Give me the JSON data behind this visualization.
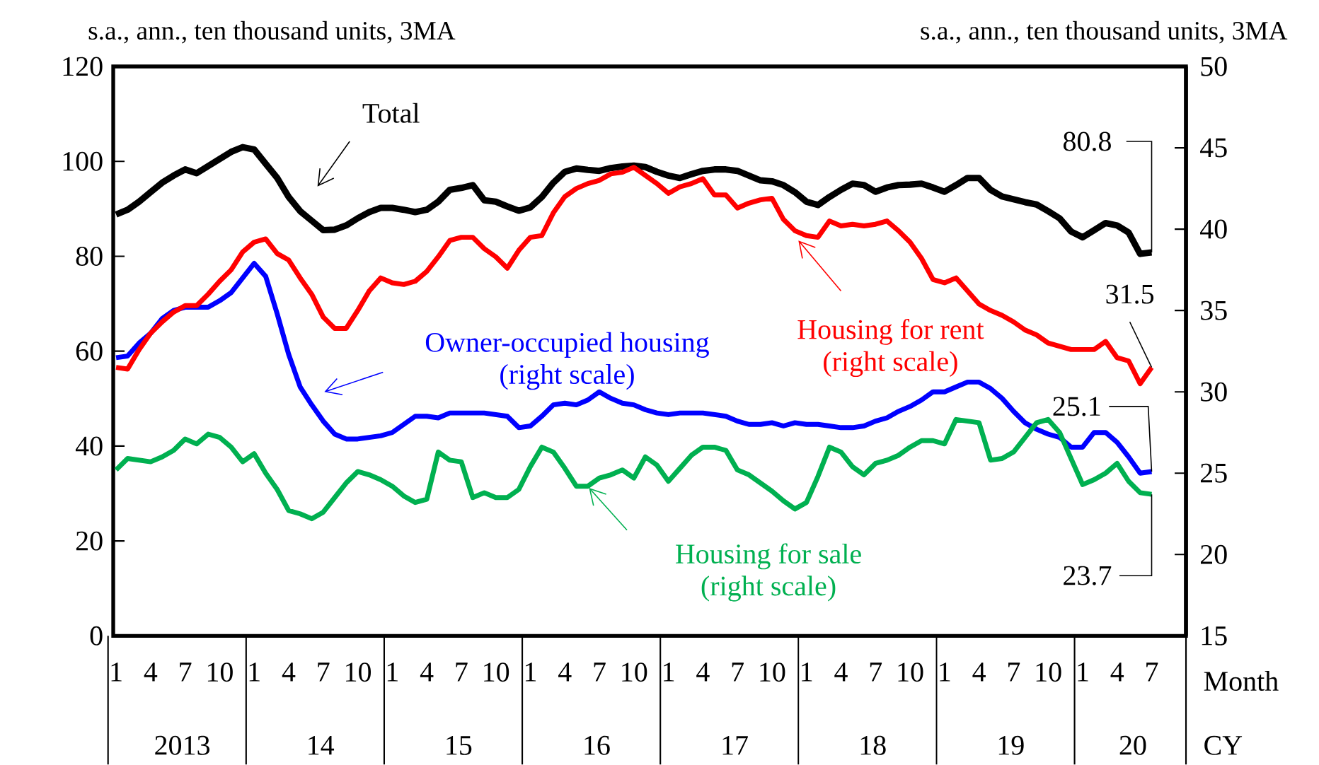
{
  "chart_data": {
    "type": "line",
    "ylabel": "s.a., ann., ten thousand units, 3MA",
    "y2label": "s.a., ann., ten thousand units, 3MA",
    "xlabel": "Month",
    "annotations": [
      "2013",
      "14",
      "15",
      "16",
      "17",
      "18",
      "19",
      "20",
      "CY"
    ],
    "categories": [
      "1",
      null,
      null,
      "4",
      null,
      null,
      "7",
      null,
      null,
      "10",
      null,
      null,
      "1",
      null,
      null,
      "4",
      null,
      null,
      "7",
      null,
      null,
      "10",
      null,
      null,
      "1",
      null,
      null,
      "4",
      null,
      null,
      "7",
      null,
      null,
      "10",
      null,
      null,
      "1",
      null,
      null,
      "4",
      null,
      null,
      "7",
      null,
      null,
      "10",
      null,
      null,
      "1",
      null,
      null,
      "4",
      null,
      null,
      "7",
      null,
      null,
      "10",
      null,
      null,
      "1",
      null,
      null,
      "4",
      null,
      null,
      "7",
      null,
      null,
      "10",
      null,
      null,
      "1",
      null,
      null,
      "4",
      null,
      null,
      "7",
      null,
      null,
      "10",
      null,
      null,
      "1",
      null,
      null,
      "4",
      null,
      null,
      "7"
    ],
    "ylim": [
      0,
      120
    ],
    "yticks": [
      0,
      20,
      40,
      60,
      80,
      100,
      120
    ],
    "y2lim": [
      15,
      50
    ],
    "y2ticks": [
      15,
      20,
      25,
      30,
      35,
      40,
      45,
      50
    ],
    "series": [
      {
        "name": "Total",
        "color": "#000000",
        "values": [
          88.8,
          89.8,
          91.5,
          93.5,
          95.5,
          97,
          98.3,
          97.5,
          99,
          100.5,
          102,
          103,
          102.5,
          99.5,
          96.5,
          92.5,
          89.5,
          87.5,
          85.5,
          85.6,
          86.5,
          88,
          89.3,
          90.2,
          90.2,
          89.8,
          89.3,
          89.8,
          91.5,
          94,
          94.4,
          95,
          91.8,
          91.5,
          90.5,
          89.6,
          90.3,
          92.5,
          95.5,
          97.8,
          98.5,
          98.2,
          98,
          98.6,
          98.9,
          99.1,
          98.8,
          97.8,
          97,
          96.5,
          97.3,
          98,
          98.3,
          98.3,
          98,
          97,
          96,
          95.8,
          95,
          93.5,
          91.5,
          90.8,
          92.5,
          94,
          95.3,
          95,
          93.6,
          94.5,
          95,
          95.1,
          95.3,
          94.5,
          93.6,
          95,
          96.5,
          96.5,
          94,
          92.6,
          92,
          91.4,
          90.9,
          89.5,
          88,
          85.2,
          84,
          85.5,
          87,
          86.5,
          85,
          80.5,
          80.8
        ],
        "value_labels": [
          null,
          null,
          null,
          null,
          null,
          null,
          null,
          null,
          null,
          null,
          null,
          null,
          null,
          null,
          null,
          null,
          null,
          null,
          null,
          null,
          null,
          null,
          null,
          null,
          null,
          null,
          null,
          null,
          null,
          null,
          null,
          null,
          null,
          null,
          null,
          null,
          null,
          null,
          null,
          null,
          null,
          null,
          null,
          null,
          null,
          null,
          null,
          null,
          null,
          null,
          null,
          null,
          null,
          null,
          null,
          null,
          null,
          null,
          null,
          null,
          null,
          null,
          null,
          null,
          null,
          null,
          null,
          null,
          null,
          null,
          null,
          null,
          null,
          null,
          null,
          null,
          null,
          null,
          null,
          null,
          null,
          null,
          null,
          null,
          null,
          null,
          null,
          null,
          null,
          null,
          "80.8"
        ]
      },
      {
        "name": "Owner-occupied housing (right scale)",
        "color": "#0000ff",
        "axis": "y2",
        "values": [
          32.1,
          32.2,
          33,
          33.6,
          34.5,
          35,
          35.2,
          35.2,
          35.2,
          35.6,
          36.1,
          37,
          37.9,
          37.1,
          34.8,
          32.3,
          30.3,
          29.2,
          28.2,
          27.4,
          27.1,
          27.1,
          27.2,
          27.3,
          27.5,
          28,
          28.5,
          28.5,
          28.4,
          28.7,
          28.7,
          28.7,
          28.7,
          28.6,
          28.5,
          27.8,
          27.9,
          28.5,
          29.2,
          29.3,
          29.2,
          29.5,
          30,
          29.6,
          29.3,
          29.2,
          28.9,
          28.7,
          28.6,
          28.7,
          28.7,
          28.7,
          28.6,
          28.5,
          28.2,
          28,
          28,
          28.1,
          27.9,
          28.1,
          28,
          28,
          27.9,
          27.8,
          27.8,
          27.9,
          28.2,
          28.4,
          28.8,
          29.1,
          29.5,
          30,
          30,
          30.3,
          30.6,
          30.6,
          30.2,
          29.6,
          28.8,
          28.1,
          27.7,
          27.4,
          27.2,
          26.6,
          26.6,
          27.5,
          27.5,
          26.9,
          26,
          25,
          25.1
        ],
        "value_labels": [
          null,
          null,
          null,
          null,
          null,
          null,
          null,
          null,
          null,
          null,
          null,
          null,
          null,
          null,
          null,
          null,
          null,
          null,
          null,
          null,
          null,
          null,
          null,
          null,
          null,
          null,
          null,
          null,
          null,
          null,
          null,
          null,
          null,
          null,
          null,
          null,
          null,
          null,
          null,
          null,
          null,
          null,
          null,
          null,
          null,
          null,
          null,
          null,
          null,
          null,
          null,
          null,
          null,
          null,
          null,
          null,
          null,
          null,
          null,
          null,
          null,
          null,
          null,
          null,
          null,
          null,
          null,
          null,
          null,
          null,
          null,
          null,
          null,
          null,
          null,
          null,
          null,
          null,
          null,
          null,
          null,
          null,
          null,
          null,
          null,
          null,
          null,
          null,
          null,
          null,
          "25.1"
        ]
      },
      {
        "name": "Housing for rent (right scale)",
        "color": "#ff0000",
        "axis": "y2",
        "values": [
          31.5,
          31.4,
          32.6,
          33.6,
          34.3,
          34.9,
          35.3,
          35.3,
          36,
          36.8,
          37.5,
          38.6,
          39.2,
          39.4,
          38.5,
          38.1,
          37,
          36,
          34.6,
          33.9,
          33.9,
          35,
          36.2,
          37,
          36.7,
          36.6,
          36.8,
          37.4,
          38.3,
          39.3,
          39.5,
          39.5,
          38.8,
          38.3,
          37.6,
          38.7,
          39.5,
          39.6,
          41,
          42,
          42.5,
          42.8,
          43,
          43.4,
          43.5,
          43.8,
          43.3,
          42.8,
          42.2,
          42.6,
          42.8,
          43.1,
          42.1,
          42.1,
          41.3,
          41.6,
          41.8,
          41.9,
          40.6,
          39.9,
          39.6,
          39.5,
          40.5,
          40.2,
          40.3,
          40.2,
          40.3,
          40.5,
          39.9,
          39.2,
          38.2,
          36.9,
          36.7,
          37,
          36.2,
          35.4,
          35,
          34.7,
          34.3,
          33.8,
          33.5,
          33,
          32.8,
          32.6,
          32.6,
          32.6,
          33.1,
          32.1,
          31.9,
          30.5,
          31.5
        ],
        "value_labels": [
          null,
          null,
          null,
          null,
          null,
          null,
          null,
          null,
          null,
          null,
          null,
          null,
          null,
          null,
          null,
          null,
          null,
          null,
          null,
          null,
          null,
          null,
          null,
          null,
          null,
          null,
          null,
          null,
          null,
          null,
          null,
          null,
          null,
          null,
          null,
          null,
          null,
          null,
          null,
          null,
          null,
          null,
          null,
          null,
          null,
          null,
          null,
          null,
          null,
          null,
          null,
          null,
          null,
          null,
          null,
          null,
          null,
          null,
          null,
          null,
          null,
          null,
          null,
          null,
          null,
          null,
          null,
          null,
          null,
          null,
          null,
          null,
          null,
          null,
          null,
          null,
          null,
          null,
          null,
          null,
          null,
          null,
          null,
          null,
          null,
          null,
          null,
          null,
          null,
          null,
          "31.5"
        ]
      },
      {
        "name": "Housing for sale (right scale)",
        "color": "#00b050",
        "axis": "y2",
        "values": [
          25.2,
          25.9,
          25.8,
          25.7,
          26,
          26.4,
          27.1,
          26.8,
          27.4,
          27.2,
          26.6,
          25.7,
          26.2,
          25,
          24,
          22.7,
          22.5,
          22.2,
          22.6,
          23.5,
          24.4,
          25.1,
          24.9,
          24.6,
          24.2,
          23.6,
          23.2,
          23.4,
          26.3,
          25.8,
          25.7,
          23.5,
          23.8,
          23.5,
          23.5,
          24,
          25.4,
          26.6,
          26.3,
          25.3,
          24.2,
          24.2,
          24.7,
          24.9,
          25.2,
          24.7,
          26,
          25.5,
          24.5,
          25.3,
          26.1,
          26.6,
          26.6,
          26.4,
          25.2,
          24.9,
          24.4,
          23.9,
          23.3,
          22.8,
          23.2,
          24.8,
          26.6,
          26.3,
          25.4,
          24.9,
          25.6,
          25.8,
          26.1,
          26.6,
          27,
          27,
          26.8,
          28.3,
          28.2,
          28.1,
          25.8,
          25.9,
          26.3,
          27.2,
          28.1,
          28.3,
          27.5,
          25.9,
          24.3,
          24.6,
          25,
          25.6,
          24.5,
          23.8,
          23.7
        ],
        "value_labels": [
          null,
          null,
          null,
          null,
          null,
          null,
          null,
          null,
          null,
          null,
          null,
          null,
          null,
          null,
          null,
          null,
          null,
          null,
          null,
          null,
          null,
          null,
          null,
          null,
          null,
          null,
          null,
          null,
          null,
          null,
          null,
          null,
          null,
          null,
          null,
          null,
          null,
          null,
          null,
          null,
          null,
          null,
          null,
          null,
          null,
          null,
          null,
          null,
          null,
          null,
          null,
          null,
          null,
          null,
          null,
          null,
          null,
          null,
          null,
          null,
          null,
          null,
          null,
          null,
          null,
          null,
          null,
          null,
          null,
          null,
          null,
          null,
          null,
          null,
          null,
          null,
          null,
          null,
          null,
          null,
          null,
          null,
          null,
          null,
          null,
          null,
          null,
          null,
          null,
          null,
          "23.7"
        ]
      }
    ]
  }
}
